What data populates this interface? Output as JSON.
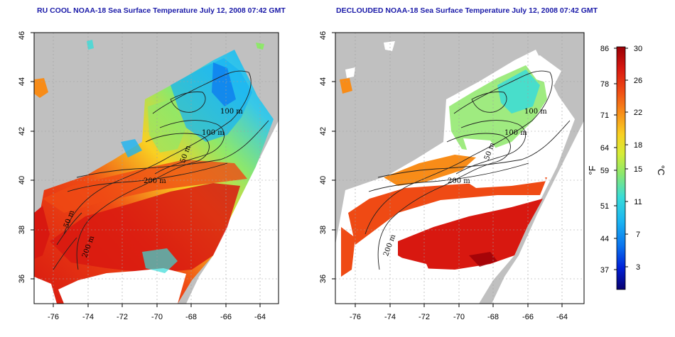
{
  "panels": [
    {
      "title": "RU COOL NOAA-18 Sea Surface Temperature July 12, 2008 07:42 GMT",
      "contour_labels": [
        "100 m",
        "100 m",
        "50 m",
        "200 m",
        "50 m",
        "200 m"
      ]
    },
    {
      "title": "DECLOUDED NOAA-18 Sea Surface Temperature July 12, 2008 07:42 GMT",
      "contour_labels": [
        "100 m",
        "100 m",
        "50 m",
        "200 m",
        "200 m"
      ]
    }
  ],
  "axes": {
    "x_ticks": [
      "-76",
      "-74",
      "-72",
      "-70",
      "-68",
      "-66",
      "-64"
    ],
    "y_ticks": [
      "36",
      "38",
      "40",
      "42",
      "44",
      "46"
    ],
    "xlim": [
      -77.2,
      -62.8
    ],
    "ylim": [
      35.0,
      46.0
    ]
  },
  "colorbar": {
    "fahrenheit_ticks": [
      "86",
      "78",
      "71",
      "64",
      "59",
      "51",
      "44",
      "37"
    ],
    "celsius_ticks": [
      "30",
      "26",
      "22",
      "18",
      "15",
      "11",
      "7",
      "3"
    ],
    "fahrenheit_unit": "°F",
    "celsius_unit": "°C",
    "colors": [
      "#08006e",
      "#0020d8",
      "#0a74ef",
      "#1ab4f2",
      "#38dcd8",
      "#8ee86a",
      "#d6ec36",
      "#f9d022",
      "#f88c18",
      "#ef4a14",
      "#d81810",
      "#9a0006"
    ]
  },
  "map_colors": {
    "land": "#c0c0c0",
    "missing": "#ffffff",
    "contour": "#202020",
    "grid": "#a0a0a0"
  }
}
